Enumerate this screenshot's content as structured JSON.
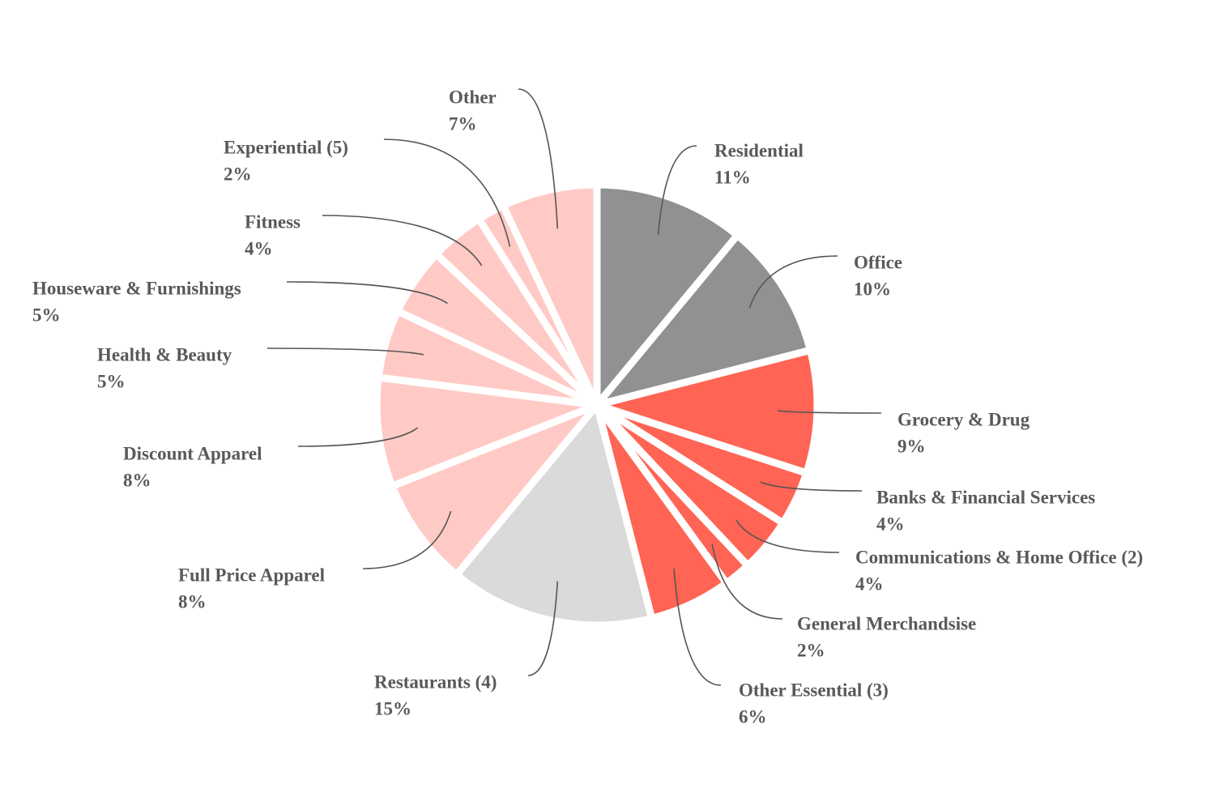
{
  "chart_data": {
    "type": "pie",
    "start_angle_deg": 0,
    "direction": "clockwise",
    "slices": [
      {
        "name": "Residential",
        "value": 11,
        "value_label": "11%",
        "color": "#919191"
      },
      {
        "name": "Office",
        "value": 10,
        "value_label": "10%",
        "color": "#919191"
      },
      {
        "name": "Grocery & Drug",
        "value": 9,
        "value_label": "9%",
        "color": "#ff6454"
      },
      {
        "name": "Banks & Financial Services",
        "value": 4,
        "value_label": "4%",
        "color": "#ff6454"
      },
      {
        "name": "Communications & Home Office (2)",
        "value": 4,
        "value_label": "4%",
        "color": "#ff6454"
      },
      {
        "name": "General Merchandsise",
        "value": 2,
        "value_label": "2%",
        "color": "#ff6454"
      },
      {
        "name": "Other Essential (3)",
        "value": 6,
        "value_label": "6%",
        "color": "#ff6454"
      },
      {
        "name": "Restaurants (4)",
        "value": 15,
        "value_label": "15%",
        "color": "#dadada"
      },
      {
        "name": "Full Price Apparel",
        "value": 8,
        "value_label": "8%",
        "color": "#ffcac5"
      },
      {
        "name": "Discount Apparel",
        "value": 8,
        "value_label": "8%",
        "color": "#ffcac5"
      },
      {
        "name": "Health & Beauty",
        "value": 5,
        "value_label": "5%",
        "color": "#ffcac5"
      },
      {
        "name": "Houseware & Furnishings",
        "value": 5,
        "value_label": "5%",
        "color": "#ffcac5"
      },
      {
        "name": "Fitness",
        "value": 4,
        "value_label": "4%",
        "color": "#ffcac5"
      },
      {
        "name": "Experiential (5)",
        "value": 2,
        "value_label": "2%",
        "color": "#ffcac5"
      },
      {
        "name": "Other",
        "value": 7,
        "value_label": "7%",
        "color": "#ffcac5"
      }
    ]
  }
}
